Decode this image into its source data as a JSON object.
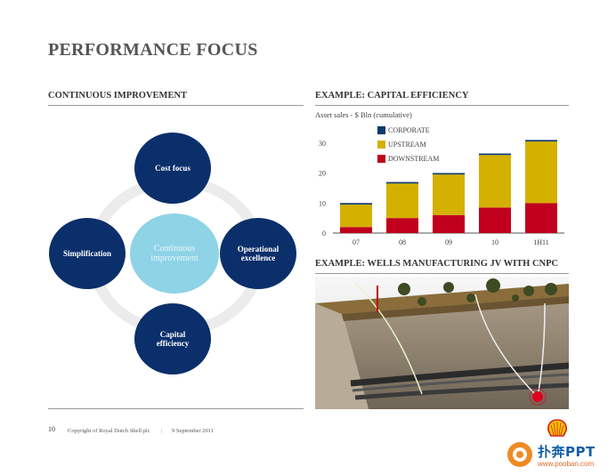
{
  "title": "PERFORMANCE FOCUS",
  "left_section": {
    "heading": "CONTINUOUS IMPROVEMENT",
    "diagram": {
      "center": "Continuous improvement",
      "top": "Cost focus",
      "right": "Operational excellence",
      "bottom": "Capital efficiency",
      "left": "Simplification"
    }
  },
  "right_top": {
    "heading": "EXAMPLE: CAPITAL EFFICIENCY",
    "subtitle": "Asset sales - $ Bln (cumulative)"
  },
  "chart_data": {
    "type": "bar",
    "stacked": true,
    "title": "",
    "ylabel": "Asset sales - $ Bln (cumulative)",
    "categories": [
      "07",
      "08",
      "09",
      "10",
      "1H11"
    ],
    "series": [
      {
        "name": "DOWNSTREAM",
        "values": [
          2,
          5,
          6,
          8.5,
          10
        ],
        "color": "#c0001c"
      },
      {
        "name": "UPSTREAM",
        "values": [
          7.5,
          11.5,
          13.5,
          17.5,
          20.5
        ],
        "color": "#d4b000"
      },
      {
        "name": "CORPORATE",
        "values": [
          0.5,
          0.5,
          0.5,
          0.5,
          0.5
        ],
        "color": "#0b3a6e"
      }
    ],
    "legend": [
      "CORPORATE",
      "UPSTREAM",
      "DOWNSTREAM"
    ],
    "yticks": [
      0,
      10,
      20,
      30
    ],
    "ylim": [
      0,
      32
    ],
    "legend_position": "top-left"
  },
  "right_bottom": {
    "heading": "EXAMPLE: WELLS MANUFACTURING JV WITH CNPC"
  },
  "footer": {
    "page_number": "10",
    "copyright": "Copyright of Royal Dutch Shell plc",
    "date": "9 September 2011"
  },
  "watermark": {
    "text": "扑奔PPT",
    "url": "www.pooban.com"
  }
}
